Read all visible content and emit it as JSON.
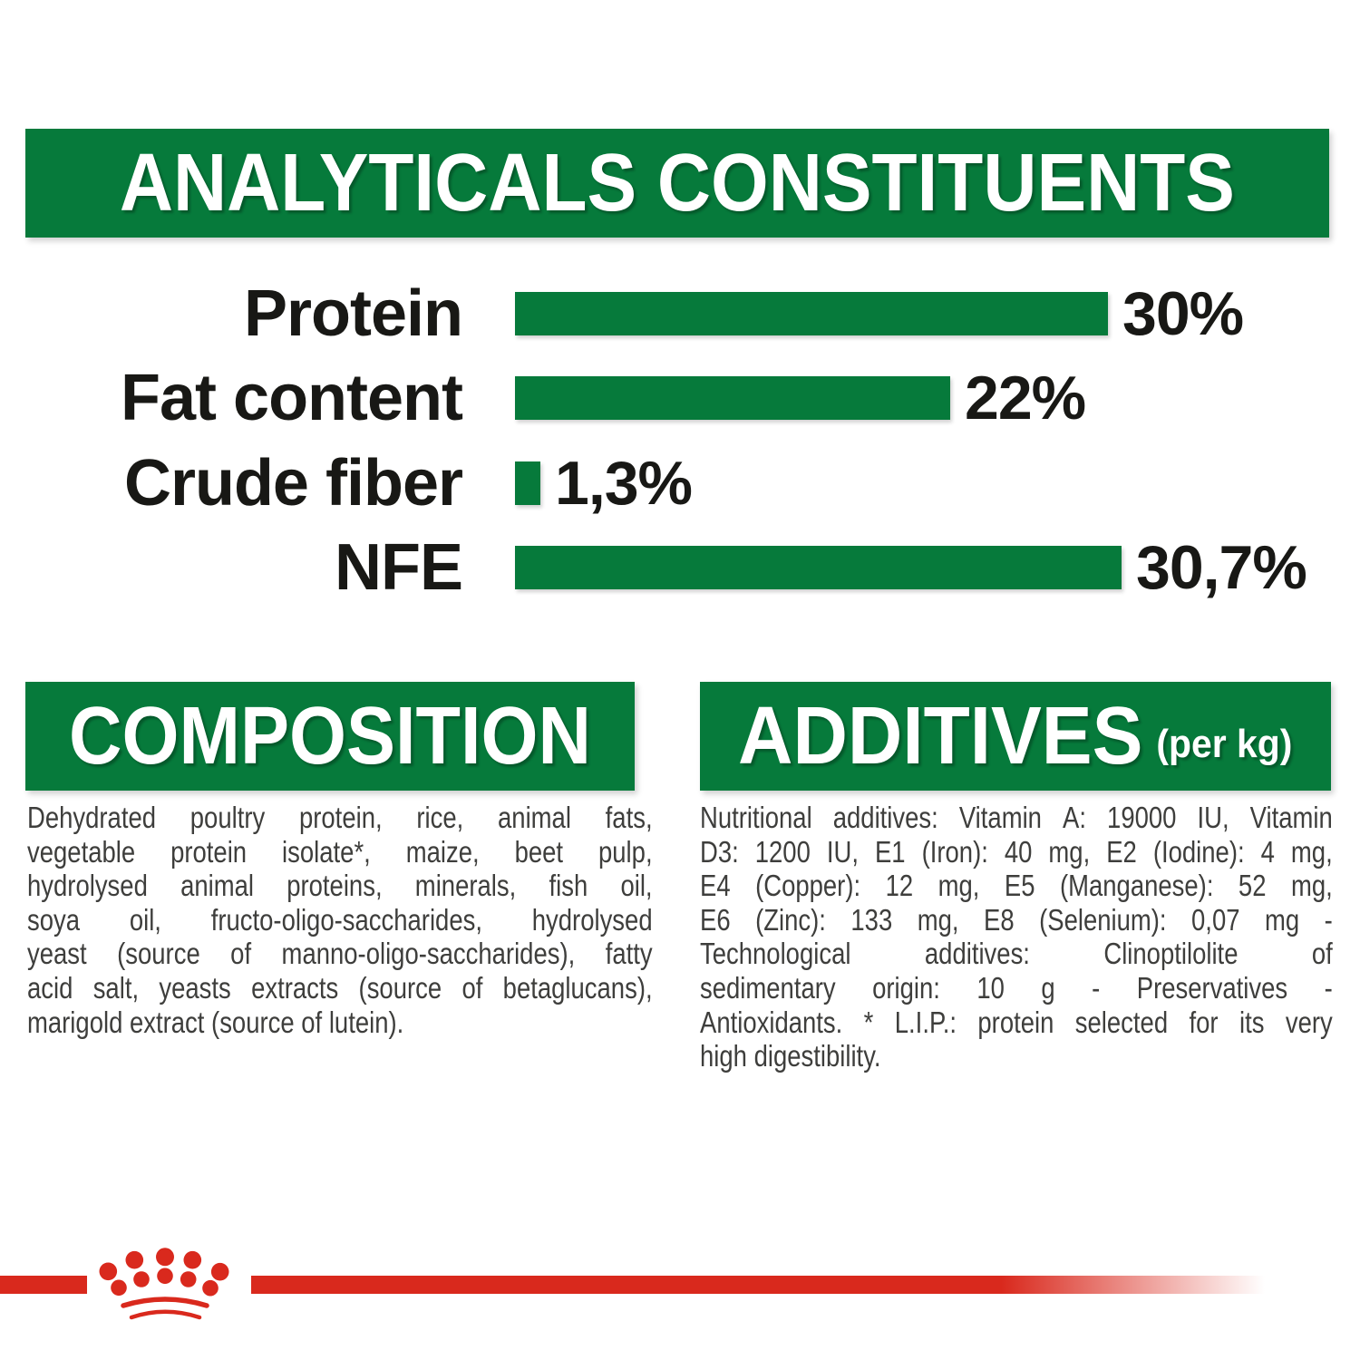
{
  "colors": {
    "green": "#067a3b",
    "red": "#d9291d",
    "header_text": "#ffffff",
    "body_text": "#3e3e3c",
    "chart_text": "#181815"
  },
  "analyticals": {
    "title": "ANALYTICALS CONSTITUENTS"
  },
  "chart_data": {
    "type": "bar",
    "orientation": "horizontal",
    "title": "ANALYTICALS CONSTITUENTS",
    "categories": [
      "Protein",
      "Fat content",
      "Crude fiber",
      "NFE"
    ],
    "values": [
      30,
      22,
      1.3,
      30.7
    ],
    "value_labels": [
      "30%",
      "22%",
      "1,3%",
      "30,7%"
    ],
    "unit": "%",
    "xlim": [
      0,
      31
    ],
    "grid": false,
    "bar_color": "#067a3b",
    "value_label_position": "end-of-bar"
  },
  "composition": {
    "title": "COMPOSITION",
    "lines": [
      "Dehydrated poultry protein, rice, animal fats,",
      "vegetable protein isolate*, maize, beet pulp,",
      "hydrolysed animal proteins, minerals, fish oil,",
      "soya oil, fructo-oligo-saccharides, hydrolysed",
      "yeast (source of manno-oligo-saccharides), fatty",
      "acid salt, yeasts extracts (source of betaglucans),"
    ],
    "last_line": "marigold extract (source of lutein)."
  },
  "additives": {
    "title": "ADDITIVES",
    "title_suffix": "(per kg)",
    "lines": [
      "Nutritional additives: Vitamin A: 19000 IU, Vitamin",
      "D3: 1200 IU, E1 (Iron): 40 mg, E2 (Iodine): 4 mg,",
      "E4 (Copper): 12 mg, E5 (Manganese): 52 mg,",
      "E6 (Zinc): 133 mg, E8 (Selenium): 0,07 mg -",
      "Technological additives: Clinoptilolite of",
      "sedimentary origin: 10 g - Preservatives -",
      "Antioxidants. * L.I.P.: protein selected for its very"
    ],
    "last_line": "high digestibility."
  },
  "footer": {
    "logo": "royal-canin-crown"
  }
}
